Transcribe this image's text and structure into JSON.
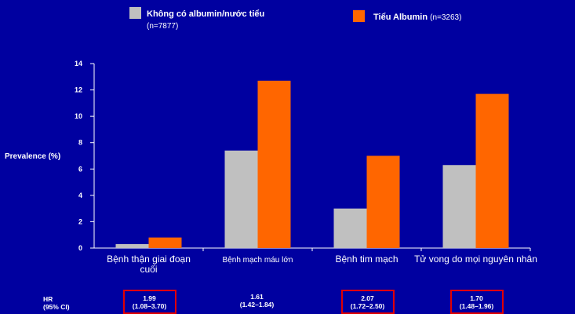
{
  "chart_data": {
    "type": "bar",
    "title": "",
    "ylabel": "Prevalence (%)",
    "xlabel": "",
    "ylim": [
      0,
      14
    ],
    "yticks": [
      0,
      2,
      4,
      6,
      8,
      10,
      12,
      14
    ],
    "grid": false,
    "legend": "top",
    "categories": [
      [
        "Bệnh thận giai đoạn",
        "cuối"
      ],
      [
        "Bệnh mạch máu lớn"
      ],
      [
        "Bệnh tim mạch"
      ],
      [
        "Tử vong do mọi nguyên nhân"
      ]
    ],
    "series": [
      {
        "name": "Không có albumin/nước tiểu",
        "n_label": "(n=7877)",
        "values": [
          0.3,
          7.4,
          3.0,
          6.3
        ]
      },
      {
        "name": "Tiểu Albumin",
        "n_label": "(n=3263)",
        "values": [
          0.8,
          12.7,
          7.0,
          11.7
        ]
      }
    ],
    "colors": [
      "#c0c0c0",
      "#ff6600"
    ],
    "hr": {
      "label_line1": "HR",
      "label_line2": "(95% CI)",
      "values": [
        {
          "hr": "1.99",
          "ci": "(1.08–3.70)",
          "boxed": true
        },
        {
          "hr": "1.61",
          "ci": "(1.42–1.84)",
          "boxed": false
        },
        {
          "hr": "2.07",
          "ci": "(1.72–2.50)",
          "boxed": true
        },
        {
          "hr": "1.70",
          "ci": "(1.48–1.96)",
          "boxed": true
        }
      ]
    }
  }
}
